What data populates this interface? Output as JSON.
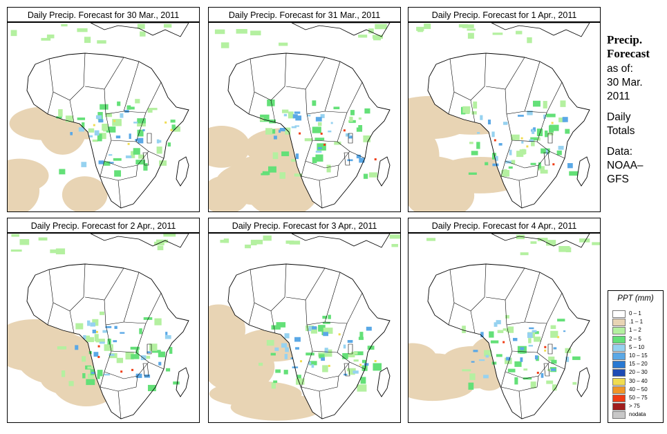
{
  "panels": [
    {
      "title": "Daily Precip. Forecast for  30 Mar., 2011"
    },
    {
      "title": "Daily Precip. Forecast for  31 Mar., 2011"
    },
    {
      "title": "Daily Precip. Forecast for  1 Apr., 2011"
    },
    {
      "title": "Daily Precip. Forecast for  2 Apr., 2011"
    },
    {
      "title": "Daily Precip. Forecast for  3 Apr., 2011"
    },
    {
      "title": "Daily Precip. Forecast for  4 Apr., 2011"
    }
  ],
  "sidebar": {
    "heading1": "Precip.",
    "heading2": "Forecast",
    "line1": "as of:",
    "line2": "30 Mar.",
    "line3": "2011",
    "line4": "Daily",
    "line5": "Totals",
    "line6": "Data:",
    "line7": "NOAA–",
    "line8": "GFS"
  },
  "legend": {
    "title": "PPT (mm)",
    "items": [
      {
        "label": "0 – 1",
        "color": "#ffffff"
      },
      {
        "label": ".1 – 1",
        "color": "#e8d4b4"
      },
      {
        "label": "1 – 2",
        "color": "#b4f0a0"
      },
      {
        "label": "2 – 5",
        "color": "#64e078"
      },
      {
        "label": "5 – 10",
        "color": "#96d2f0"
      },
      {
        "label": "10 – 15",
        "color": "#5aa8e6"
      },
      {
        "label": "15 – 20",
        "color": "#2878d2"
      },
      {
        "label": "20 – 30",
        "color": "#1e4bb4"
      },
      {
        "label": "30 – 40",
        "color": "#f0dc50"
      },
      {
        "label": "40 – 50",
        "color": "#f09628"
      },
      {
        "label": "50 – 75",
        "color": "#f03c14"
      },
      {
        "label": "> 75",
        "color": "#a01e1e"
      },
      {
        "label": "nodata",
        "color": "#c8c8c8"
      }
    ]
  }
}
